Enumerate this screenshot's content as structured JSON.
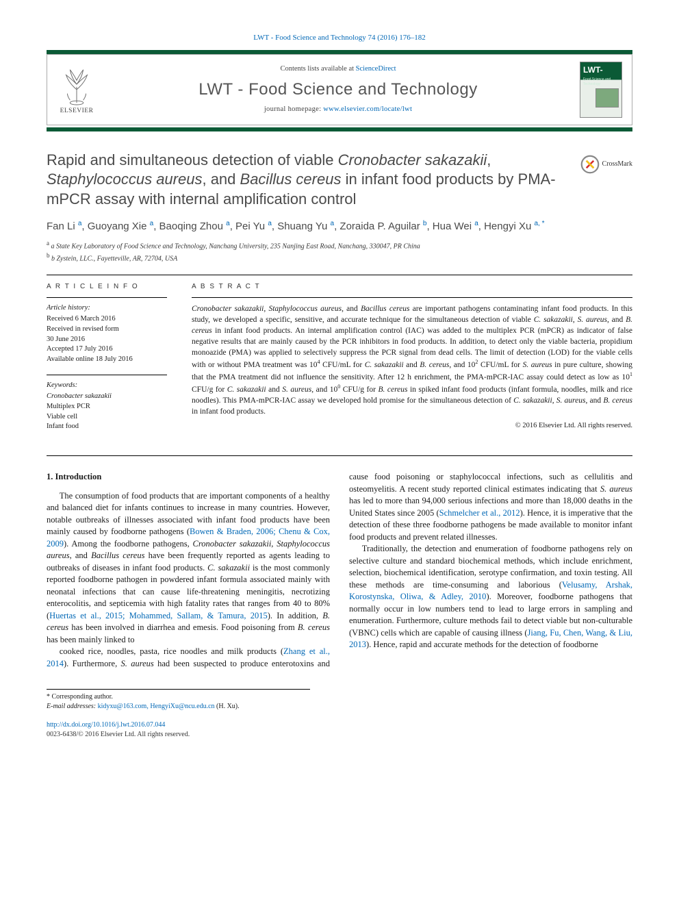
{
  "colors": {
    "brand_blue": "#0067b5",
    "brand_green": "#0b5a36",
    "text_gray": "#4a4a4a"
  },
  "running_head": "LWT - Food Science and Technology 74 (2016) 176–182",
  "banner": {
    "publisher_word": "ELSEVIER",
    "contents_prefix": "Contents lists available at ",
    "contents_link": "ScienceDirect",
    "journal_title": "LWT - Food Science and Technology",
    "home_prefix": "journal homepage: ",
    "home_link": "www.elsevier.com/locate/lwt",
    "cover_abbrev": "LWT-",
    "cover_sub": "Food Science and Technology"
  },
  "article": {
    "title_html": "Rapid and simultaneous detection of viable <em>Cronobacter sakazakii</em>, <em>Staphylococcus aureus</em>, and <em>Bacillus cereus</em> in infant food products by PMA-mPCR assay with internal amplification control",
    "crossmark_label": "CrossMark",
    "authors_html": "Fan Li <sup>a</sup>, Guoyang Xie <sup>a</sup>, Baoqing Zhou <sup>a</sup>, Pei Yu <sup>a</sup>, Shuang Yu <sup>a</sup>, Zoraida P. Aguilar <sup>b</sup>, Hua Wei <sup>a</sup>, Hengyi Xu <sup>a, <span class='star-sup'>*</span></sup>",
    "affiliations": [
      "a State Key Laboratory of Food Science and Technology, Nanchang University, 235 Nanjing East Road, Nanchang, 330047, PR China",
      "b Zystein, LLC., Fayetteville, AR, 72704, USA"
    ]
  },
  "info": {
    "label": "A R T I C L E   I N F O",
    "history_label": "Article history:",
    "history": [
      "Received 6 March 2016",
      "Received in revised form",
      "30 June 2016",
      "Accepted 17 July 2016",
      "Available online 18 July 2016"
    ],
    "keywords_label": "Keywords:",
    "keywords": [
      "Cronobacter sakazakii",
      "Multiplex PCR",
      "Viable cell",
      "Infant food"
    ]
  },
  "abstract": {
    "label": "A B S T R A C T",
    "text_html": "<em>Cronobacter sakazakii</em>, <em>Staphylococcus aureus</em>, and <em>Bacillus cereus</em> are important pathogens contaminating infant food products. In this study, we developed a specific, sensitive, and accurate technique for the simultaneous detection of viable <em>C. sakazakii</em>, <em>S. aureus</em>, and <em>B. cereus</em> in infant food products. An internal amplification control (IAC) was added to the multiplex PCR (mPCR) as indicator of false negative results that are mainly caused by the PCR inhibitors in food products. In addition, to detect only the viable bacteria, propidium monoazide (PMA) was applied to selectively suppress the PCR signal from dead cells. The limit of detection (LOD) for the viable cells with or without PMA treatment was 10<sup>4</sup> CFU/mL for <em>C. sakazakii</em> and <em>B. cereus</em>, and 10<sup>2</sup> CFU/mL for <em>S. aureus</em> in pure culture, showing that the PMA treatment did not influence the sensitivity. After 12 h enrichment, the PMA-mPCR-IAC assay could detect as low as 10<sup>1</sup> CFU/g for <em>C. sakazakii</em> and <em>S. aureus</em>, and 10<sup>0</sup> CFU/g for <em>B. cereus</em> in spiked infant food products (infant formula, noodles, milk and rice noodles). This PMA-mPCR-IAC assay we developed hold promise for the simultaneous detection of <em>C. sakazakii</em>, <em>S. aureus</em>, and <em>B. cereus</em> in infant food products.",
    "copyright": "© 2016 Elsevier Ltd. All rights reserved."
  },
  "body": {
    "heading": "1. Introduction",
    "p1_html": "The consumption of food products that are important components of a healthy and balanced diet for infants continues to increase in many countries. However, notable outbreaks of illnesses associated with infant food products have been mainly caused by foodborne pathogens (<span class='ref-link'>Bowen &amp; Braden, 2006; Chenu &amp; Cox, 2009</span>). Among the foodborne pathogens, <em class='sp'>Cronobacter sakazakii</em>, <em class='sp'>Staphylococcus aureus</em>, and <em class='sp'>Bacillus cereus</em> have been frequently reported as agents leading to outbreaks of diseases in infant food products. <em class='sp'>C. sakazakii</em> is the most commonly reported foodborne pathogen in powdered infant formula associated mainly with neonatal infections that can cause life-threatening meningitis, necrotizing enterocolitis, and septicemia with high fatality rates that ranges from 40 to 80% (<span class='ref-link'>Huertas et al., 2015; Mohammed, Sallam, &amp; Tamura, 2015</span>). In addition, <em class='sp'>B. cereus</em> has been involved in diarrhea and emesis. Food poisoning from <em class='sp'>B. cereus</em> has been mainly linked to",
    "p2_html": "cooked rice, noodles, pasta, rice noodles and milk products (<span class='ref-link'>Zhang et al., 2014</span>). Furthermore, <em class='sp'>S. aureus</em> had been suspected to produce enterotoxins and cause food poisoning or staphylococcal infections, such as cellulitis and osteomyelitis. A recent study reported clinical estimates indicating that <em class='sp'>S. aureus</em> has led to more than 94,000 serious infections and more than 18,000 deaths in the United States since 2005 (<span class='ref-link'>Schmelcher et al., 2012</span>). Hence, it is imperative that the detection of these three foodborne pathogens be made available to monitor infant food products and prevent related illnesses.",
    "p3_html": "Traditionally, the detection and enumeration of foodborne pathogens rely on selective culture and standard biochemical methods, which include enrichment, selection, biochemical identification, serotype confirmation, and toxin testing. All these methods are time-consuming and laborious (<span class='ref-link'>Velusamy, Arshak, Korostynska, Oliwa, &amp; Adley, 2010</span>). Moreover, foodborne pathogens that normally occur in low numbers tend to lead to large errors in sampling and enumeration. Furthermore, culture methods fail to detect viable but non-culturable (VBNC) cells which are capable of causing illness (<span class='ref-link'>Jiang, Fu, Chen, Wang, &amp; Liu, 2013</span>). Hence, rapid and accurate methods for the detection of foodborne"
  },
  "footnotes": {
    "corresponding": "* Corresponding author.",
    "email_label": "E-mail addresses:",
    "emails": "kidyxu@163.com, HengyiXu@ncu.edu.cn",
    "email_person": "(H. Xu)."
  },
  "doi": {
    "link": "http://dx.doi.org/10.1016/j.lwt.2016.07.044",
    "issn_line": "0023-6438/© 2016 Elsevier Ltd. All rights reserved."
  }
}
